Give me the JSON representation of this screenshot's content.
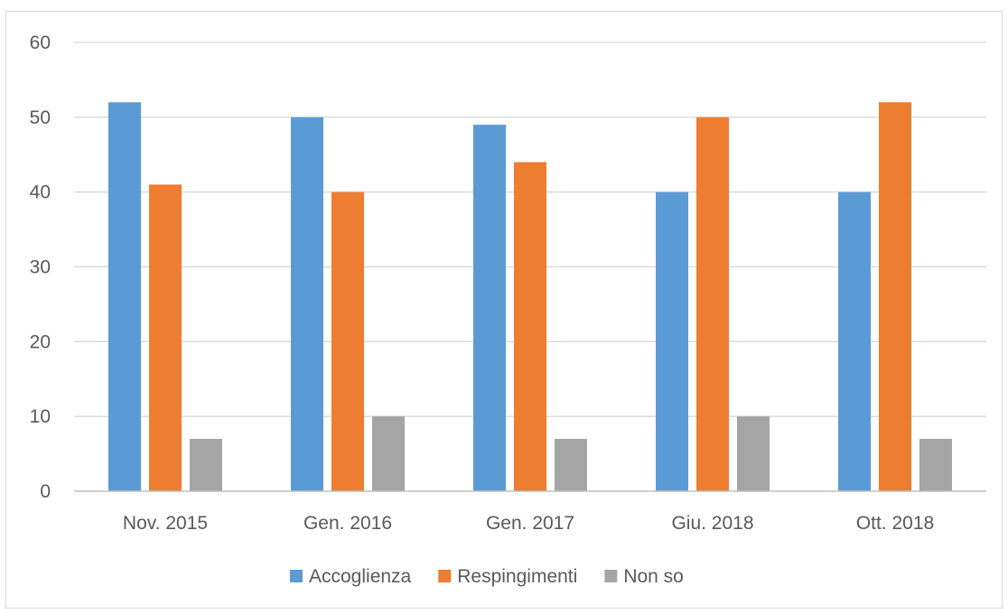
{
  "chart_data": {
    "type": "bar",
    "title": "",
    "xlabel": "",
    "ylabel": "",
    "categories": [
      "Nov. 2015",
      "Gen. 2016",
      "Gen. 2017",
      "Giu. 2018",
      "Ott. 2018"
    ],
    "series": [
      {
        "name": "Accoglienza",
        "color": "#5b9bd5",
        "values": [
          52,
          50,
          49,
          40,
          40
        ]
      },
      {
        "name": "Respingimenti",
        "color": "#ed7d31",
        "values": [
          41,
          40,
          44,
          50,
          52
        ]
      },
      {
        "name": "Non so",
        "color": "#a5a5a5",
        "values": [
          7,
          10,
          7,
          10,
          7
        ]
      }
    ],
    "ylim": [
      0,
      60
    ],
    "yticks": [
      0,
      10,
      20,
      30,
      40,
      50,
      60
    ],
    "ytick_labels": [
      "0",
      "10",
      "20",
      "30",
      "40",
      "50",
      "60"
    ],
    "grid": true,
    "legend_position": "bottom",
    "colors": {
      "grid": "#d9d9d9",
      "axis": "#bfbfbf",
      "text": "#595959"
    }
  }
}
